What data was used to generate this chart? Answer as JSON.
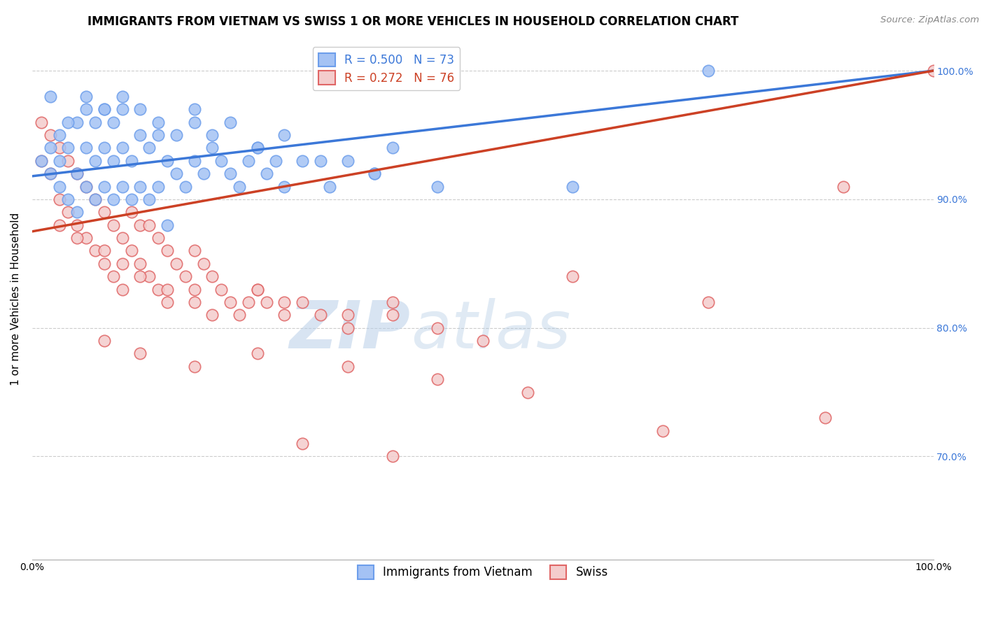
{
  "title": "IMMIGRANTS FROM VIETNAM VS SWISS 1 OR MORE VEHICLES IN HOUSEHOLD CORRELATION CHART",
  "source": "Source: ZipAtlas.com",
  "ylabel": "1 or more Vehicles in Household",
  "xlim": [
    0.0,
    100.0
  ],
  "ylim": [
    62.0,
    102.5
  ],
  "yticks": [
    70.0,
    80.0,
    90.0,
    100.0
  ],
  "ytick_labels": [
    "70.0%",
    "80.0%",
    "90.0%",
    "100.0%"
  ],
  "legend_blue_R": "R = 0.500",
  "legend_blue_N": "N = 73",
  "legend_pink_R": "R = 0.272",
  "legend_pink_N": "N = 76",
  "legend_label_blue": "Immigrants from Vietnam",
  "legend_label_pink": "Swiss",
  "blue_color": "#a4c2f4",
  "pink_color": "#f4cccc",
  "blue_edge_color": "#6d9eeb",
  "pink_edge_color": "#e06666",
  "blue_line_color": "#3c78d8",
  "pink_line_color": "#cc4125",
  "watermark_zip": "ZIP",
  "watermark_atlas": "atlas",
  "blue_line_x0": 0,
  "blue_line_y0": 91.8,
  "blue_line_x1": 100,
  "blue_line_y1": 100.0,
  "pink_line_x0": 0,
  "pink_line_y0": 87.5,
  "pink_line_x1": 100,
  "pink_line_y1": 100.0,
  "blue_x": [
    1,
    2,
    2,
    3,
    3,
    3,
    4,
    4,
    5,
    5,
    5,
    6,
    6,
    6,
    7,
    7,
    7,
    8,
    8,
    8,
    9,
    9,
    9,
    10,
    10,
    10,
    11,
    11,
    12,
    12,
    13,
    13,
    14,
    14,
    15,
    15,
    16,
    17,
    18,
    18,
    19,
    20,
    21,
    22,
    23,
    24,
    25,
    26,
    27,
    28,
    30,
    33,
    35,
    38,
    40,
    2,
    4,
    6,
    8,
    10,
    12,
    14,
    16,
    18,
    20,
    22,
    25,
    28,
    32,
    38,
    45,
    60,
    75
  ],
  "blue_y": [
    93,
    92,
    94,
    91,
    93,
    95,
    90,
    94,
    89,
    92,
    96,
    91,
    94,
    97,
    90,
    93,
    96,
    91,
    94,
    97,
    90,
    93,
    96,
    91,
    94,
    97,
    90,
    93,
    91,
    95,
    90,
    94,
    91,
    95,
    88,
    93,
    92,
    91,
    93,
    96,
    92,
    94,
    93,
    92,
    91,
    93,
    94,
    92,
    93,
    91,
    93,
    91,
    93,
    92,
    94,
    98,
    96,
    98,
    97,
    98,
    97,
    96,
    95,
    97,
    95,
    96,
    94,
    95,
    93,
    92,
    91,
    91,
    100
  ],
  "pink_x": [
    1,
    1,
    2,
    2,
    3,
    3,
    4,
    4,
    5,
    5,
    6,
    6,
    7,
    7,
    8,
    8,
    9,
    9,
    10,
    10,
    11,
    11,
    12,
    12,
    13,
    13,
    14,
    14,
    15,
    15,
    16,
    17,
    18,
    18,
    19,
    20,
    21,
    22,
    23,
    24,
    25,
    26,
    28,
    30,
    35,
    40,
    3,
    5,
    8,
    10,
    12,
    15,
    18,
    20,
    25,
    28,
    32,
    35,
    40,
    45,
    50,
    8,
    12,
    18,
    25,
    35,
    45,
    60,
    75,
    90,
    100,
    30,
    40,
    55,
    70,
    88
  ],
  "pink_y": [
    93,
    96,
    92,
    95,
    90,
    94,
    89,
    93,
    88,
    92,
    87,
    91,
    86,
    90,
    85,
    89,
    84,
    88,
    83,
    87,
    86,
    89,
    85,
    88,
    84,
    88,
    83,
    87,
    82,
    86,
    85,
    84,
    83,
    86,
    85,
    84,
    83,
    82,
    81,
    82,
    83,
    82,
    81,
    82,
    81,
    82,
    88,
    87,
    86,
    85,
    84,
    83,
    82,
    81,
    83,
    82,
    81,
    80,
    81,
    80,
    79,
    79,
    78,
    77,
    78,
    77,
    76,
    84,
    82,
    91,
    100,
    71,
    70,
    75,
    72,
    73
  ]
}
